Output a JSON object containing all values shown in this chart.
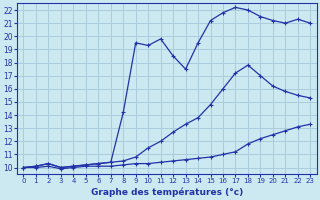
{
  "bg_color": "#cce8f0",
  "line_color": "#2233aa",
  "grid_color": "#aaccdd",
  "title": "Graphe des températures (°c)",
  "xlim": [
    -0.5,
    23.5
  ],
  "ylim": [
    9.5,
    22.5
  ],
  "xticks": [
    0,
    1,
    2,
    3,
    4,
    5,
    6,
    7,
    8,
    9,
    10,
    11,
    12,
    13,
    14,
    15,
    16,
    17,
    18,
    19,
    20,
    21,
    22,
    23
  ],
  "yticks": [
    10,
    11,
    12,
    13,
    14,
    15,
    16,
    17,
    18,
    19,
    20,
    21,
    22
  ],
  "line1_x": [
    0,
    1,
    2,
    3,
    4,
    5,
    6,
    7,
    8,
    9,
    10,
    11,
    12,
    13,
    14,
    15,
    16,
    17,
    18,
    19,
    20,
    21,
    22,
    23
  ],
  "line1_y": [
    10,
    10.0,
    10.1,
    9.9,
    10.0,
    10.1,
    10.1,
    10.1,
    10.2,
    10.3,
    10.3,
    10.4,
    10.5,
    10.6,
    10.7,
    10.8,
    11.0,
    11.2,
    11.8,
    12.2,
    12.5,
    12.8,
    13.1,
    13.3
  ],
  "line2_x": [
    0,
    1,
    2,
    3,
    4,
    5,
    6,
    7,
    8,
    9,
    10,
    11,
    12,
    13,
    14,
    15,
    16,
    17,
    18,
    19,
    20,
    21,
    22,
    23
  ],
  "line2_y": [
    10,
    10.1,
    10.3,
    10.0,
    10.1,
    10.2,
    10.3,
    10.4,
    10.5,
    10.8,
    11.5,
    12.0,
    12.7,
    13.3,
    13.8,
    14.8,
    16.0,
    17.2,
    17.8,
    17.0,
    16.2,
    15.8,
    15.5,
    15.3
  ],
  "line3_x": [
    0,
    1,
    2,
    3,
    4,
    5,
    6,
    7,
    8,
    9,
    10,
    11,
    12,
    13,
    14,
    15,
    16,
    17,
    18,
    19,
    20,
    21,
    22,
    23
  ],
  "line3_y": [
    10,
    10.1,
    10.3,
    10.0,
    10.1,
    10.2,
    10.3,
    10.4,
    14.2,
    19.5,
    19.3,
    19.8,
    18.5,
    17.5,
    19.5,
    21.2,
    21.8,
    22.2,
    22.0,
    21.5,
    21.2,
    21.0,
    21.3,
    21.0
  ]
}
